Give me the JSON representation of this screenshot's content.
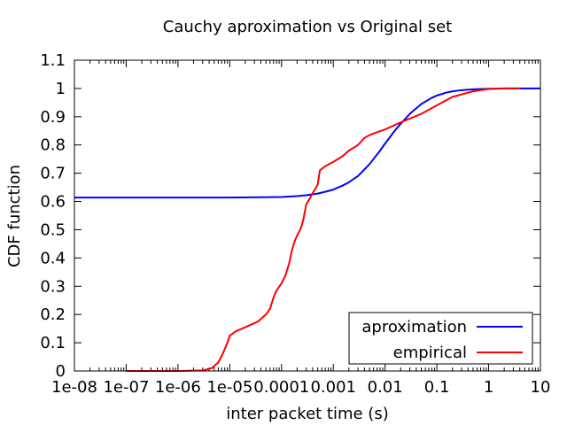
{
  "chart_data": {
    "type": "line",
    "title": "Cauchy aproximation vs Original set",
    "xlabel": "inter packet time (s)",
    "ylabel": "CDF function",
    "xscale": "log",
    "xlim": [
      1e-08,
      10
    ],
    "ylim": [
      0,
      1.1
    ],
    "xticks": [
      1e-08,
      1e-07,
      1e-06,
      1e-05,
      0.0001,
      0.001,
      0.01,
      0.1,
      1,
      10
    ],
    "xtick_labels": [
      "1e-08",
      "1e-07",
      "1e-06",
      "1e-05",
      "0.0001",
      "0.001",
      "0.01",
      "0.1",
      "1",
      "10"
    ],
    "yticks": [
      0,
      0.1,
      0.2,
      0.3,
      0.4,
      0.5,
      0.6,
      0.7,
      0.8,
      0.9,
      1,
      1.1
    ],
    "ytick_labels": [
      "0",
      "0.1",
      "0.2",
      "0.3",
      "0.4",
      "0.5",
      "0.6",
      "0.7",
      "0.8",
      "0.9",
      "1",
      "1.1"
    ],
    "grid": false,
    "legend_position": "bottom-right",
    "series": [
      {
        "name": "aproximation",
        "color": "#0000ff",
        "x": [
          1e-08,
          1e-07,
          1e-06,
          1e-05,
          0.0001,
          0.0002,
          0.0003,
          0.0005,
          0.0008,
          0.001,
          0.0015,
          0.002,
          0.003,
          0.005,
          0.008,
          0.01,
          0.015,
          0.02,
          0.03,
          0.05,
          0.08,
          0.1,
          0.15,
          0.2,
          0.3,
          0.5,
          1,
          2,
          10
        ],
        "y": [
          0.614,
          0.614,
          0.614,
          0.614,
          0.616,
          0.619,
          0.622,
          0.628,
          0.637,
          0.642,
          0.656,
          0.668,
          0.69,
          0.732,
          0.78,
          0.805,
          0.848,
          0.875,
          0.91,
          0.945,
          0.967,
          0.975,
          0.985,
          0.99,
          0.994,
          0.997,
          0.999,
          1.0,
          1.0
        ]
      },
      {
        "name": "empirical",
        "color": "#ff0000",
        "x": [
          1e-07,
          1e-06,
          3e-06,
          4.5e-06,
          6e-06,
          7.5e-06,
          9e-06,
          1e-05,
          1.3e-05,
          2e-05,
          3.5e-05,
          5e-05,
          6e-05,
          7e-05,
          8e-05,
          0.0001,
          0.00012,
          0.00014,
          0.00016,
          0.00018,
          0.0002,
          0.00023,
          0.00026,
          0.0003,
          0.00035,
          0.0004,
          0.00045,
          0.0005,
          0.00055,
          0.0007,
          0.001,
          0.0015,
          0.002,
          0.003,
          0.004,
          0.005,
          0.007,
          0.01,
          0.02,
          0.05,
          0.1,
          0.2,
          0.5,
          1,
          2,
          4
        ],
        "y": [
          0.0,
          0.0,
          0.002,
          0.01,
          0.03,
          0.065,
          0.1,
          0.125,
          0.14,
          0.155,
          0.175,
          0.2,
          0.22,
          0.26,
          0.285,
          0.31,
          0.34,
          0.38,
          0.43,
          0.46,
          0.48,
          0.5,
          0.53,
          0.59,
          0.61,
          0.63,
          0.645,
          0.66,
          0.71,
          0.725,
          0.74,
          0.76,
          0.78,
          0.8,
          0.825,
          0.835,
          0.845,
          0.855,
          0.88,
          0.91,
          0.94,
          0.97,
          0.99,
          0.998,
          1.0,
          1.0
        ]
      }
    ]
  }
}
